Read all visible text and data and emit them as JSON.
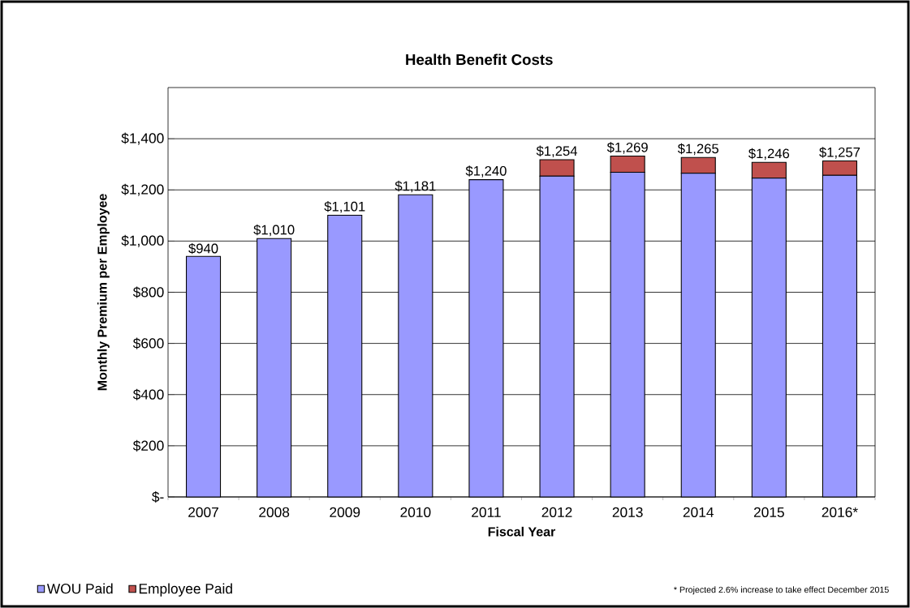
{
  "chart_data": {
    "type": "bar",
    "stacked": true,
    "title": "Health Benefit Costs",
    "xlabel": "Fiscal Year",
    "ylabel": "Monthly Premium  per Employee",
    "categories": [
      "2007",
      "2008",
      "2009",
      "2010",
      "2011",
      "2012",
      "2013",
      "2014",
      "2015",
      "2016*"
    ],
    "series": [
      {
        "name": "WOU Paid",
        "color": "#9999ff",
        "values": [
          940,
          1010,
          1101,
          1181,
          1240,
          1254,
          1269,
          1265,
          1246,
          1257
        ],
        "value_labels": [
          "$940",
          "$1,010",
          "$1,101",
          "$1,181",
          "$1,240",
          "$1,254",
          "$1,269",
          "$1,265",
          "$1,246",
          "$1,257"
        ]
      },
      {
        "name": "Employee Paid",
        "color": "#c0504d",
        "values": [
          null,
          null,
          null,
          null,
          null,
          64,
          63,
          62,
          62,
          56
        ]
      }
    ],
    "ylim": [
      0,
      1600
    ],
    "yticks": [
      {
        "value": 0,
        "label": "$-"
      },
      {
        "value": 200,
        "label": "$200"
      },
      {
        "value": 400,
        "label": "$400"
      },
      {
        "value": 600,
        "label": "$600"
      },
      {
        "value": 800,
        "label": "$800"
      },
      {
        "value": 1000,
        "label": "$1,000"
      },
      {
        "value": 1200,
        "label": "$1,200"
      },
      {
        "value": 1400,
        "label": "$1,400"
      }
    ],
    "grid": "y",
    "legend": "bottom left",
    "annotations": [
      "* Projected 2.6% increase to take effect December 2015"
    ]
  }
}
